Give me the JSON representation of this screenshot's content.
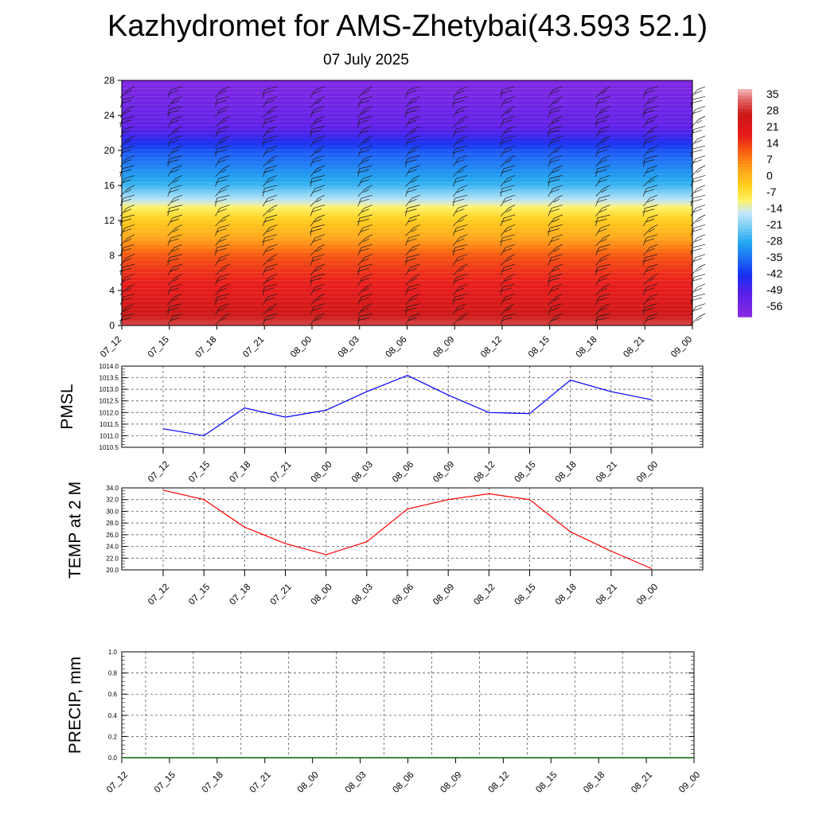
{
  "title": "Kazhydromet for AMS-Zhetybai(43.593 52.1)",
  "subtitle": "07 July 2025",
  "chart_data": [
    {
      "type": "heatmap",
      "ylim": [
        0,
        28
      ],
      "y_ticks": [
        "0",
        "4",
        "8",
        "12",
        "16",
        "20",
        "24",
        "28"
      ],
      "time_labels": [
        "07_12",
        "07_15",
        "07_18",
        "07_21",
        "08_00",
        "08_03",
        "08_06",
        "08_09",
        "08_12",
        "08_15",
        "08_18",
        "08_21",
        "09_00"
      ],
      "colorbar": {
        "labels": [
          "35",
          "28",
          "21",
          "14",
          "7",
          "0",
          "-7",
          "-14",
          "-21",
          "-28",
          "-35",
          "-42",
          "-49",
          "-56"
        ],
        "range": [
          -60,
          38
        ],
        "stops": [
          {
            "v": -60,
            "c": "#8a2be2"
          },
          {
            "v": -50,
            "c": "#5a1fe8"
          },
          {
            "v": -42,
            "c": "#1830f0"
          },
          {
            "v": -35,
            "c": "#1e6ef5"
          },
          {
            "v": -28,
            "c": "#23a8f0"
          },
          {
            "v": -21,
            "c": "#7fd0f5"
          },
          {
            "v": -15,
            "c": "#c8e8f8"
          },
          {
            "v": -10,
            "c": "#fff36a"
          },
          {
            "v": -4,
            "c": "#ffd21e"
          },
          {
            "v": 3,
            "c": "#ffa81c"
          },
          {
            "v": 10,
            "c": "#fa6a10"
          },
          {
            "v": 18,
            "c": "#e81c1c"
          },
          {
            "v": 27,
            "c": "#cc1616"
          },
          {
            "v": 33,
            "c": "#e06060"
          },
          {
            "v": 38,
            "c": "#f4b8b8"
          }
        ]
      },
      "temperature_profile": [
        {
          "h": 0,
          "t": 31
        },
        {
          "h": 2,
          "t": 24
        },
        {
          "h": 4,
          "t": 19
        },
        {
          "h": 6,
          "t": 16
        },
        {
          "h": 8,
          "t": 12
        },
        {
          "h": 10,
          "t": 3
        },
        {
          "h": 12,
          "t": -3
        },
        {
          "h": 13.5,
          "t": -10
        },
        {
          "h": 14.5,
          "t": -17
        },
        {
          "h": 16,
          "t": -26
        },
        {
          "h": 18,
          "t": -32
        },
        {
          "h": 20,
          "t": -38
        },
        {
          "h": 21.5,
          "t": -46
        },
        {
          "h": 23,
          "t": -52
        },
        {
          "h": 28,
          "t": -58
        }
      ]
    },
    {
      "type": "line",
      "ylabel": "PMSL",
      "ylim": [
        1010.5,
        1014.0
      ],
      "y_ticks": [
        "1010.5",
        "1011.0",
        "1011.5",
        "1012.0",
        "1012.5",
        "1013.0",
        "1013.5",
        "1014.0"
      ],
      "x": [
        "07_12",
        "07_15",
        "07_18",
        "07_21",
        "08_00",
        "08_03",
        "08_06",
        "08_09",
        "08_12",
        "08_15",
        "08_18",
        "08_21",
        "09_00"
      ],
      "values": [
        1011.3,
        1011.0,
        1012.2,
        1011.8,
        1012.1,
        1012.9,
        1013.6,
        1012.75,
        1012.0,
        1011.95,
        1013.4,
        1012.9,
        1012.55
      ],
      "color": "#0000ff"
    },
    {
      "type": "line",
      "ylabel": "TEMP at 2 M",
      "ylim": [
        20.0,
        34.0
      ],
      "y_ticks": [
        "20.0",
        "22.0",
        "24.0",
        "26.0",
        "28.0",
        "30.0",
        "32.0",
        "34.0"
      ],
      "x": [
        "07_12",
        "07_15",
        "07_18",
        "07_21",
        "08_00",
        "08_03",
        "08_06",
        "08_09",
        "08_12",
        "08_15",
        "08_18",
        "08_21",
        "09_00"
      ],
      "values": [
        33.6,
        32.0,
        27.3,
        24.5,
        22.6,
        24.8,
        30.4,
        32.0,
        33.0,
        32.0,
        26.5,
        23.2,
        20.2
      ],
      "color": "#ff0000"
    },
    {
      "type": "line",
      "ylabel": "PRECIP, mm",
      "ylim": [
        0.0,
        1.0
      ],
      "y_ticks": [
        "0.0",
        "0.2",
        "0.4",
        "0.6",
        "0.8",
        "1.0"
      ],
      "x": [
        "07_12",
        "07_15",
        "07_18",
        "07_21",
        "08_00",
        "08_03",
        "08_06",
        "08_09",
        "08_12",
        "08_15",
        "08_18",
        "08_21",
        "09_00"
      ],
      "values": [
        0,
        0,
        0,
        0,
        0,
        0,
        0,
        0,
        0,
        0,
        0,
        0,
        0
      ],
      "color": "#006400"
    }
  ]
}
